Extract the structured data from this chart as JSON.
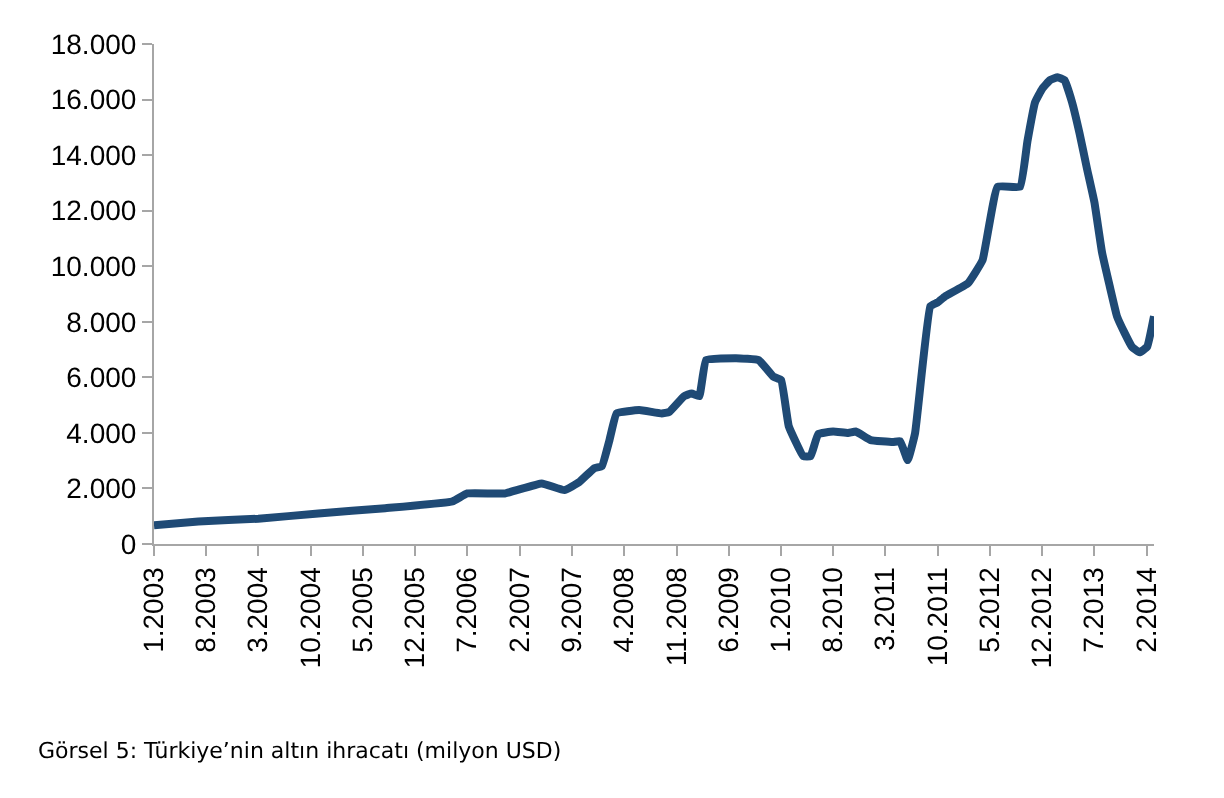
{
  "chart_data": {
    "type": "line",
    "x": [
      "2003-01",
      "2003-07",
      "2004-03",
      "2004-11",
      "2005-08",
      "2006-05",
      "2006-07",
      "2006-12",
      "2007-05",
      "2007-08",
      "2007-10",
      "2007-12",
      "2008-01",
      "2008-02",
      "2008-03",
      "2008-06",
      "2008-09",
      "2008-10",
      "2008-12",
      "2009-01",
      "2009-02",
      "2009-03",
      "2009-07",
      "2009-10",
      "2009-12",
      "2010-01",
      "2010-02",
      "2010-04",
      "2010-05",
      "2010-06",
      "2010-08",
      "2010-10",
      "2010-11",
      "2011-01",
      "2011-04",
      "2011-05",
      "2011-06",
      "2011-07",
      "2011-09",
      "2011-10",
      "2011-11",
      "2012-02",
      "2012-04",
      "2012-06",
      "2012-09",
      "2012-10",
      "2012-11",
      "2012-12",
      "2013-01",
      "2013-02",
      "2013-03",
      "2013-04",
      "2013-05",
      "2013-06",
      "2013-07",
      "2013-08",
      "2013-09",
      "2013-10",
      "2013-11",
      "2013-12",
      "2014-01",
      "2014-02",
      "2014-03"
    ],
    "series": [
      {
        "color": "#1f4a75",
        "values": [
          670,
          810,
          910,
          1100,
          1290,
          1530,
          1820,
          1820,
          2180,
          1940,
          2230,
          2730,
          2800,
          3740,
          4700,
          4820,
          4700,
          4750,
          5320,
          5420,
          5320,
          6620,
          6690,
          6620,
          6020,
          5900,
          4240,
          3160,
          3160,
          3960,
          4050,
          4000,
          4050,
          3740,
          3670,
          3700,
          3020,
          4000,
          8560,
          8700,
          8920,
          9380,
          10220,
          12860,
          12860,
          14500,
          15900,
          16400,
          16700,
          16800,
          16700,
          15900,
          14800,
          13500,
          12300,
          10500,
          9300,
          8200,
          7600,
          7100,
          6900,
          7100,
          8200
        ]
      }
    ],
    "xlim": [
      "2003-01",
      "2014-03"
    ],
    "xticks": [
      {
        "value": "2003-01",
        "label": "1.2003"
      },
      {
        "value": "2003-08",
        "label": "8.2003"
      },
      {
        "value": "2004-03",
        "label": "3.2004"
      },
      {
        "value": "2004-10",
        "label": "10.2004"
      },
      {
        "value": "2005-05",
        "label": "5.2005"
      },
      {
        "value": "2005-12",
        "label": "12.2005"
      },
      {
        "value": "2006-07",
        "label": "7.2006"
      },
      {
        "value": "2007-02",
        "label": "2.2007"
      },
      {
        "value": "2007-09",
        "label": "9.2007"
      },
      {
        "value": "2008-04",
        "label": "4.2008"
      },
      {
        "value": "2008-11",
        "label": "11.2008"
      },
      {
        "value": "2009-06",
        "label": "6.2009"
      },
      {
        "value": "2010-01",
        "label": "1.2010"
      },
      {
        "value": "2010-08",
        "label": "8.2010"
      },
      {
        "value": "2011-03",
        "label": "3.2011"
      },
      {
        "value": "2011-10",
        "label": "10.2011"
      },
      {
        "value": "2012-05",
        "label": "5.2012"
      },
      {
        "value": "2012-12",
        "label": "12.2012"
      },
      {
        "value": "2013-07",
        "label": "7.2013"
      },
      {
        "value": "2014-02",
        "label": "2.2014"
      }
    ],
    "ylim": [
      0,
      18000
    ],
    "yticks": [
      0,
      {
        "value": 2000,
        "label": "2.000"
      },
      {
        "value": 4000,
        "label": "4.000"
      },
      {
        "value": 6000,
        "label": "6.000"
      },
      {
        "value": 8000,
        "label": "8.000"
      },
      {
        "value": 10000,
        "label": "10.000"
      },
      {
        "value": 12000,
        "label": "12.000"
      },
      {
        "value": 14000,
        "label": "14.000"
      },
      {
        "value": 16000,
        "label": "16.000"
      },
      {
        "value": 18000,
        "label": "18.000"
      }
    ],
    "annotations": [
      "Görsel 5: Türkiye’nin altın ihracatı (milyon USD)"
    ]
  }
}
